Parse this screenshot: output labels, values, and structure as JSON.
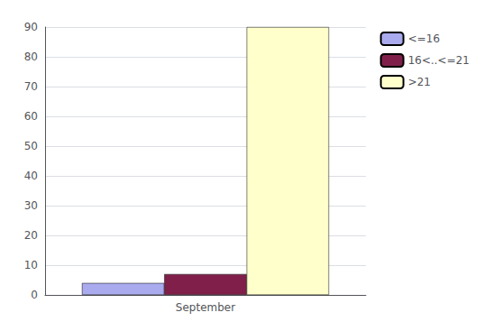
{
  "chart_data": {
    "type": "bar",
    "categories": [
      "September"
    ],
    "series": [
      {
        "name": "<=16",
        "color": "#aaaaee",
        "values": [
          4
        ]
      },
      {
        "name": "16<..<=21",
        "color": "#80204a",
        "values": [
          7
        ]
      },
      {
        "name": ">21",
        "color": "#ffffcc",
        "values": [
          90
        ]
      }
    ],
    "ylim": [
      0,
      90
    ],
    "yticks": [
      0,
      10,
      20,
      30,
      40,
      50,
      60,
      70,
      80,
      90
    ],
    "grid": true,
    "legend": "right"
  }
}
